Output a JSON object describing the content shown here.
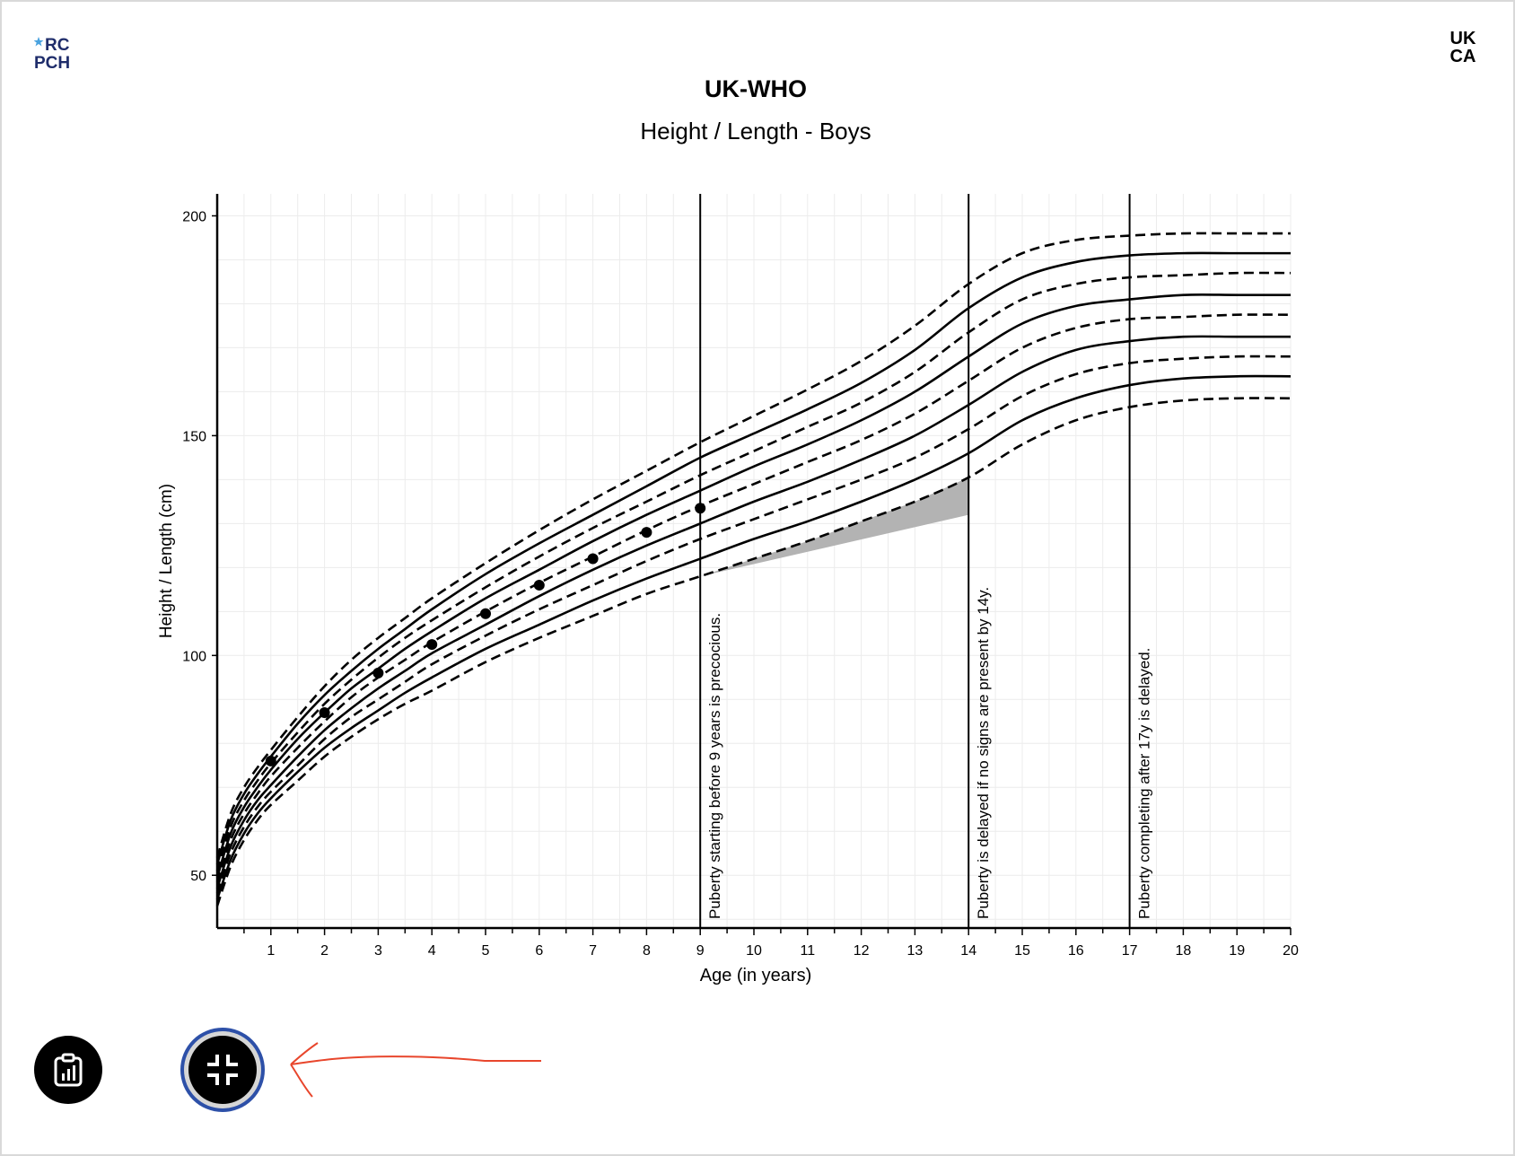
{
  "header": {
    "title": "UK-WHO",
    "subtitle": "Height / Length - Boys",
    "rcpch_logo_text": [
      "RC",
      "PCH"
    ],
    "ukca_mark_text": [
      "UK",
      "CA"
    ]
  },
  "buttons": {
    "report_icon": "clipboard-chart-icon",
    "fullscreen_icon": "exit-fullscreen-icon"
  },
  "annotation": {
    "color": "#e8462c"
  },
  "chart_data": {
    "type": "line",
    "title": "UK-WHO",
    "subtitle": "Height / Length - Boys",
    "xlabel": "Age (in years)",
    "ylabel": "Height / Length (cm)",
    "xlim": [
      0,
      20
    ],
    "ylim": [
      38,
      205
    ],
    "x_ticks": [
      1,
      2,
      3,
      4,
      5,
      6,
      7,
      8,
      9,
      10,
      11,
      12,
      13,
      14,
      15,
      16,
      17,
      18,
      19,
      20
    ],
    "x_tick_labels": [
      "1",
      "2",
      "3",
      "4",
      "5",
      "6",
      "7",
      "8",
      "9",
      "10",
      "11",
      "12",
      "13",
      "14",
      "15",
      "16",
      "17",
      "18",
      "19",
      "20"
    ],
    "y_ticks": [
      50,
      100,
      150,
      200
    ],
    "y_tick_labels": [
      "50",
      "100",
      "150",
      "200"
    ],
    "grid": true,
    "centile_x": [
      0,
      0.25,
      0.5,
      0.75,
      1,
      1.5,
      2,
      2.5,
      3,
      3.5,
      4,
      5,
      6,
      7,
      8,
      9,
      10,
      11,
      12,
      13,
      14,
      15,
      16,
      17,
      18,
      19,
      20
    ],
    "centiles": [
      {
        "style": "dashed",
        "values": [
          54,
          64,
          70,
          74.5,
          78.5,
          86,
          93,
          99,
          104,
          108.5,
          113,
          121,
          128.5,
          135.5,
          142,
          148.5,
          154.5,
          160.5,
          167,
          175,
          184.5,
          191.5,
          194.5,
          195.5,
          196,
          196,
          196
        ]
      },
      {
        "style": "solid",
        "values": [
          52.5,
          62.5,
          68.5,
          73,
          77,
          84.5,
          91,
          96.5,
          101.5,
          106,
          110.5,
          118.5,
          125.5,
          132,
          138.5,
          145,
          150.5,
          156,
          162,
          169.5,
          179,
          186,
          189.5,
          191,
          191.5,
          191.5,
          191.5
        ]
      },
      {
        "style": "dashed",
        "values": [
          51,
          61,
          67,
          71.5,
          75.5,
          82.5,
          89,
          94.5,
          99.5,
          104,
          108,
          115.5,
          122.5,
          129,
          135,
          141,
          146.5,
          152,
          157.5,
          164.5,
          173.5,
          181,
          184.5,
          186,
          186.5,
          187,
          187
        ]
      },
      {
        "style": "solid",
        "values": [
          49.5,
          59.5,
          65.5,
          70,
          74,
          81,
          87,
          92.5,
          97,
          101.5,
          105.5,
          113,
          119.5,
          126,
          132,
          137.5,
          143,
          148,
          153.5,
          160,
          168,
          175.5,
          179.5,
          181,
          182,
          182,
          182
        ]
      },
      {
        "style": "dashed",
        "values": [
          48.5,
          58,
          64,
          68.5,
          72.5,
          79,
          85,
          90.5,
          95,
          99,
          103,
          110,
          116.5,
          122.5,
          128.5,
          134,
          139,
          144,
          149,
          155,
          162.5,
          170,
          174.5,
          176.5,
          177,
          177.5,
          177.5
        ]
      },
      {
        "style": "solid",
        "values": [
          47,
          56.5,
          62.5,
          67,
          70.5,
          77,
          83,
          88,
          92.5,
          96.5,
          100.5,
          107,
          113.5,
          119.5,
          125,
          130,
          135,
          139.5,
          144.5,
          150,
          157,
          164.5,
          169.5,
          171.5,
          172.5,
          172.5,
          172.5
        ]
      },
      {
        "style": "dashed",
        "values": [
          46,
          55,
          61,
          65.5,
          69,
          75,
          81,
          86,
          90,
          94,
          98,
          104.5,
          110.5,
          116,
          121.5,
          126.5,
          131,
          135.5,
          140,
          145,
          151.5,
          159,
          164,
          166.5,
          167.5,
          168,
          168
        ]
      },
      {
        "style": "solid",
        "values": [
          44.5,
          53.5,
          59.5,
          64,
          67.5,
          73.5,
          79,
          83.5,
          87.5,
          91.5,
          95,
          101.5,
          107,
          112.5,
          117.5,
          122,
          126.5,
          130.5,
          135,
          140,
          146,
          153.5,
          158.5,
          161.5,
          163,
          163.5,
          163.5
        ]
      },
      {
        "style": "dashed",
        "values": [
          43,
          52,
          58,
          62.5,
          66,
          71.5,
          77,
          81.5,
          85.5,
          89,
          92,
          98.5,
          104,
          109,
          114,
          118,
          122,
          126,
          130.5,
          135,
          140.5,
          148,
          153.5,
          156.5,
          158,
          158.5,
          158.5
        ]
      }
    ],
    "series": [
      {
        "x": [
          1,
          2,
          3,
          4,
          5,
          6,
          7,
          8,
          9
        ],
        "values": [
          76,
          87,
          96,
          102.5,
          109.5,
          116,
          122,
          128,
          133.5
        ]
      }
    ],
    "shaded_region": {
      "description": "",
      "lower": {
        "x": [
          9,
          14
        ],
        "y": [
          118,
          132
        ]
      },
      "upper": {
        "x": [
          9,
          10,
          11,
          12,
          13,
          14
        ],
        "y": [
          118,
          122,
          126,
          130.5,
          135,
          140.5
        ]
      }
    },
    "reference_lines": [
      {
        "x": 9,
        "label": "Puberty starting before 9 years is precocious."
      },
      {
        "x": 14,
        "label": "Puberty is delayed if no signs are present by 14y."
      },
      {
        "x": 17,
        "label": "Puberty completing after 17y is delayed."
      }
    ]
  }
}
